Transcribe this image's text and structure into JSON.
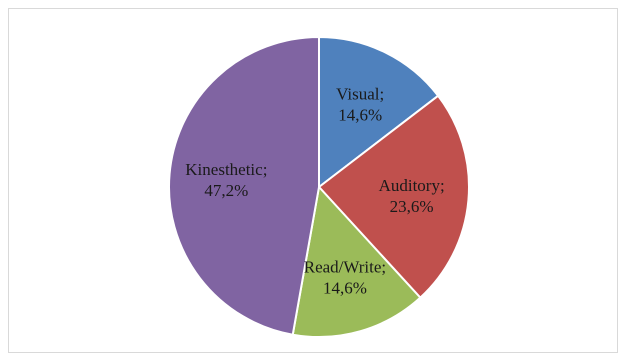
{
  "chart_data": {
    "type": "pie",
    "title": "",
    "slices": [
      {
        "label": "Visual;",
        "value_label": "14,6%",
        "value": 14.6,
        "color": "#4f81bd"
      },
      {
        "label": "Auditory;",
        "value_label": "23,6%",
        "value": 23.6,
        "color": "#c0504d"
      },
      {
        "label": "Read/Write;",
        "value_label": "14,6%",
        "value": 14.6,
        "color": "#9bbb59"
      },
      {
        "label": "Kinesthetic;",
        "value_label": "47,2%",
        "value": 47.2,
        "color": "#8064a2"
      }
    ],
    "start_angle_deg": 0,
    "direction": "clockwise",
    "legend": "none",
    "data_labels": "inside"
  }
}
